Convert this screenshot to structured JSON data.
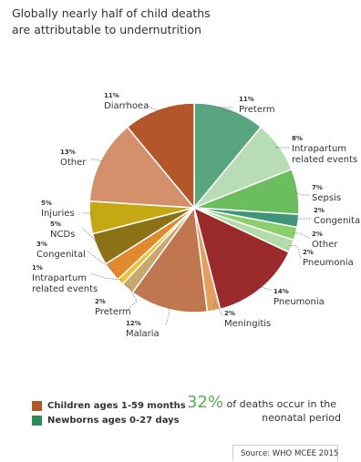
{
  "title_lines": [
    "Globally nearly half of child deaths",
    "are attributable to undernutrition"
  ],
  "chart_data": {
    "type": "pie",
    "title": "Globally nearly half of child deaths are attributable to undernutrition",
    "slices": [
      {
        "label": "Preterm",
        "group": "newborn",
        "value": 11,
        "pct_label": "11%",
        "color": "#58a57f"
      },
      {
        "label": "Intrapartum related events",
        "group": "newborn",
        "value": 8,
        "pct_label": "8%",
        "color": "#b8dcb3"
      },
      {
        "label": "Sepsis",
        "group": "newborn",
        "value": 7,
        "pct_label": "7%",
        "color": "#6cbd5e"
      },
      {
        "label": "Congenital",
        "group": "newborn",
        "value": 2,
        "pct_label": "2%",
        "color": "#3f947a"
      },
      {
        "label": "Other",
        "group": "newborn",
        "value": 2,
        "pct_label": "2%",
        "color": "#8bce6a"
      },
      {
        "label": "Pneumonia",
        "group": "newborn",
        "value": 2,
        "pct_label": "2%",
        "color": "#b4dcaa"
      },
      {
        "label": "Pneumonia",
        "group": "child",
        "value": 14,
        "pct_label": "14%",
        "color": "#9a2a2c"
      },
      {
        "label": "Meningitis",
        "group": "child",
        "value": 2,
        "pct_label": "2%",
        "color": "#e0a060"
      },
      {
        "label": "Malaria",
        "group": "child",
        "value": 12,
        "pct_label": "12%",
        "color": "#c0764f"
      },
      {
        "label": "Preterm",
        "group": "child",
        "value": 2,
        "pct_label": "2%",
        "color": "#c9a870"
      },
      {
        "label": "Intrapartum related events",
        "group": "child",
        "value": 1,
        "pct_label": "1%",
        "color": "#f0c030"
      },
      {
        "label": "Congenital",
        "group": "child",
        "value": 3,
        "pct_label": "3%",
        "color": "#e08a2e"
      },
      {
        "label": "NCDs",
        "group": "child",
        "value": 5,
        "pct_label": "5%",
        "color": "#8c7216"
      },
      {
        "label": "Injuries",
        "group": "child",
        "value": 5,
        "pct_label": "5%",
        "color": "#c5a814"
      },
      {
        "label": "Other",
        "group": "child",
        "value": 13,
        "pct_label": "13%",
        "color": "#d4906b"
      },
      {
        "label": "Diarrhoea",
        "group": "child",
        "value": 11,
        "pct_label": "11%",
        "color": "#b3562a"
      }
    ]
  },
  "legend": [
    {
      "label": "Children ages 1-59 months",
      "color": "#b3562a"
    },
    {
      "label": "Newborns ages 0-27 days",
      "color": "#2e8b57"
    }
  ],
  "callout": {
    "value": "32%",
    "text1": "of deaths occur in the",
    "text2": "neonatal period"
  },
  "source": "Source: WHO MCEE 2015"
}
